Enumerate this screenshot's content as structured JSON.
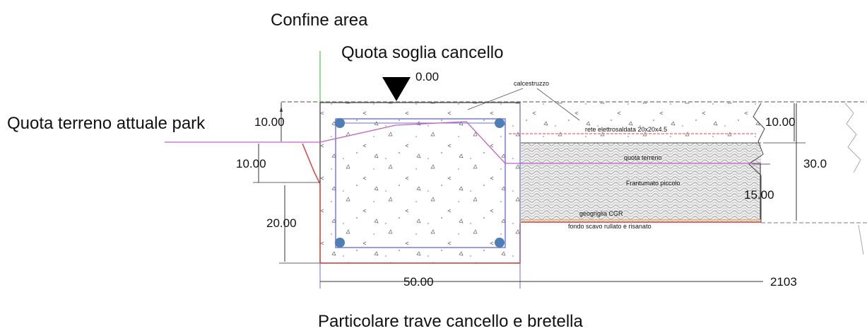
{
  "labels": {
    "confine_area": "Confine area",
    "quota_soglia": "Quota soglia cancello",
    "zero_level": "0.00",
    "quota_terreno": "Quota terreno attuale park",
    "calcestruzzo": "calcestruzzo",
    "rete": "rete elettrosaldata 20x20x4.5",
    "quota_terreno_small": "quota terreno",
    "frantumato": "Frantumato piccolo",
    "geogriglia": "geogriglia CGR",
    "fondo_scavo": "fondo scavo rullato e risanato",
    "caption": "Particolare trave cancello e bretella"
  },
  "dimensions": {
    "beam_top_left": "10.00",
    "ground_step": "10.00",
    "beam_lower": "20.00",
    "beam_width": "50.00",
    "slab_top_right": "10.00",
    "gravel": "15.00",
    "total_depth": "30.0",
    "extra": "2103"
  },
  "colors": {
    "beam_outline": "#333333",
    "rebar_cage": "#6f6fe0",
    "rebar_dot": "#4d7fb5",
    "ground_line": "#c561c5",
    "mesh_line": "#f08080",
    "red_edge": "#d9403a",
    "gravel_fill": "#e9e9e9"
  }
}
